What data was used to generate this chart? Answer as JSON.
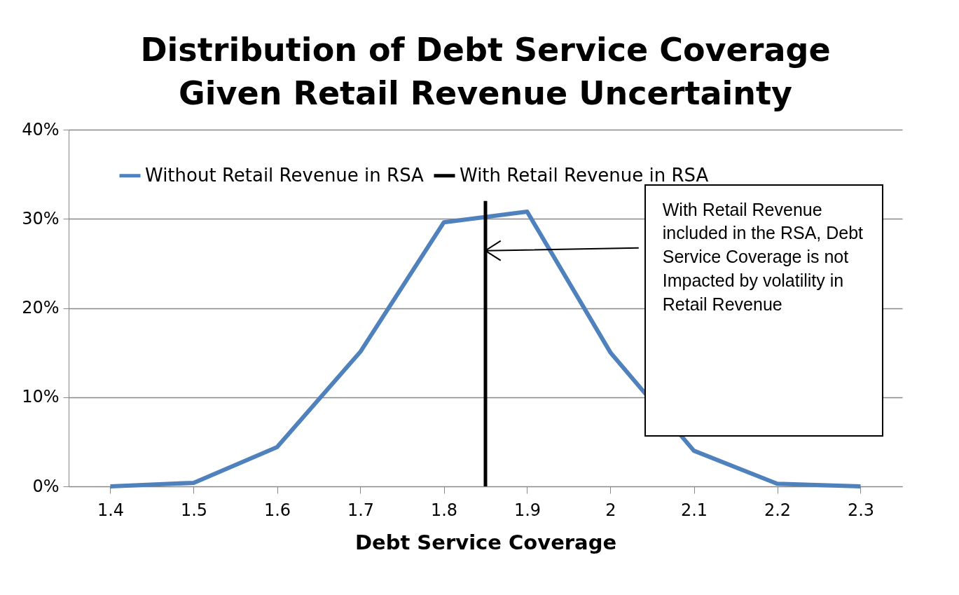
{
  "chart_data": {
    "type": "line",
    "title": [
      "Distribution of Debt Service Coverage",
      "Given Retail Revenue Uncertainty"
    ],
    "xlabel": "Debt Service Coverage",
    "x": [
      1.4,
      1.5,
      1.6,
      1.7,
      1.8,
      1.9,
      2.0,
      2.1,
      2.2,
      2.3
    ],
    "xlim": [
      1.35,
      2.35
    ],
    "xticks": [
      1.4,
      1.5,
      1.6,
      1.7,
      1.8,
      1.9,
      {
        "value": 2.0,
        "label": "2"
      },
      2.1,
      2.2,
      2.3
    ],
    "ylim": [
      0,
      40
    ],
    "yticks": [
      {
        "value": 0,
        "label": "0%"
      },
      {
        "value": 10,
        "label": "10%"
      },
      {
        "value": 20,
        "label": "20%"
      },
      {
        "value": 30,
        "label": "30%"
      },
      {
        "value": 40,
        "label": "40%"
      }
    ],
    "series": [
      {
        "name": "Without Retail Revenue in RSA",
        "color": "#4f81bd",
        "values": [
          0,
          0.4,
          4.4,
          15.1,
          29.6,
          30.8,
          15,
          4,
          0.3,
          0
        ]
      },
      {
        "name": "With Retail Revenue in RSA",
        "color": "#000000",
        "x": [
          1.85,
          1.85
        ],
        "values": [
          0,
          32
        ]
      }
    ],
    "grid": "y",
    "legend": "top",
    "line_style": "solid",
    "annotations": [
      "With Retail Revenue included in the RSA, Debt Service Coverage is not Impacted by volatility in Retail Revenue"
    ]
  }
}
